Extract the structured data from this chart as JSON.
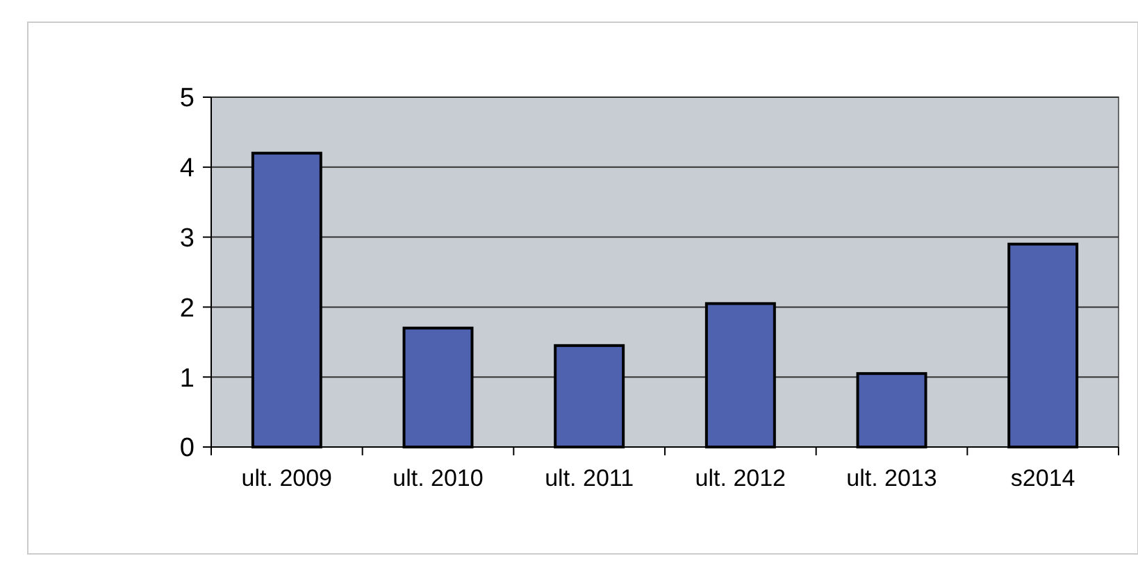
{
  "chart_data": {
    "type": "bar",
    "categories": [
      "ult. 2009",
      "ult. 2010",
      "ult. 2011",
      "ult. 2012",
      "ult. 2013",
      "s2014"
    ],
    "values": [
      4.2,
      1.7,
      1.45,
      2.05,
      1.05,
      2.9
    ],
    "color": "#4f62b0",
    "ylim": [
      0,
      5
    ],
    "yticks": [
      0,
      1,
      2,
      3,
      4,
      5
    ],
    "grid": "y"
  }
}
